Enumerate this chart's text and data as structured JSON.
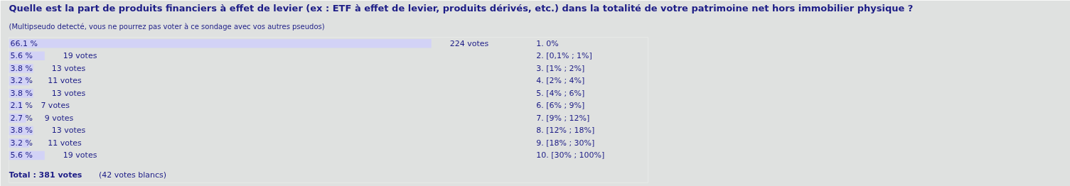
{
  "chart_data": {
    "type": "bar",
    "orientation": "horizontal",
    "title": "Quelle est la part de produits financiers à effet de levier (ex : ETF à effet de levier, produits dérivés, etc.) dans la totalité de votre patrimoine net hors immobilier physique ?",
    "subtitle": "(Multipseudo detecté, vous ne pourrez pas voter à ce sondage avec vos autres pseudos)",
    "categories": [
      "1.  0%",
      "2.  [0,1% ; 1%]",
      "3.  [1% ; 2%]",
      "4.  [2% ; 4%]",
      "5.  [4% ; 6%]",
      "6.  [6% ; 9%]",
      "7.  [9% ; 12%]",
      "8.  [12% ; 18%]",
      "9.  [18% ; 30%]",
      "10.  [30% ; 100%]"
    ],
    "values": [
      66.1,
      5.6,
      3.8,
      3.2,
      3.8,
      2.1,
      2.7,
      3.8,
      3.2,
      5.6
    ],
    "value_labels": [
      "66.1 %",
      "5.6 %",
      "3.8 %",
      "3.2 %",
      "3.8 %",
      "2.1 %",
      "2.7 %",
      "3.8 %",
      "3.2 %",
      "5.6 %"
    ],
    "color": "#d2d2f6",
    "xlim": [
      0,
      100
    ],
    "tick_labels": false,
    "grid": false,
    "annotations": [
      {
        "text": "224 votes",
        "x": 66.1,
        "y": "1.  0%"
      },
      {
        "text": "19 votes",
        "x": 5.6,
        "y": "2.  [0,1% ; 1%]"
      },
      {
        "text": "13 votes",
        "x": 3.8,
        "y": "3.  [1% ; 2%]"
      },
      {
        "text": "11 votes",
        "x": 3.2,
        "y": "4.  [2% ; 4%]"
      },
      {
        "text": "13 votes",
        "x": 3.8,
        "y": "5.  [4% ; 6%]"
      },
      {
        "text": "7 votes",
        "x": 2.1,
        "y": "6.  [6% ; 9%]"
      },
      {
        "text": "9 votes",
        "x": 2.7,
        "y": "7.  [9% ; 12%]"
      },
      {
        "text": "13 votes",
        "x": 3.8,
        "y": "8.  [12% ; 18%]"
      },
      {
        "text": "11 votes",
        "x": 3.2,
        "y": "9.  [18% ; 30%]"
      },
      {
        "text": "19 votes",
        "x": 5.6,
        "y": "10.  [30% ; 100%]"
      },
      "Total : 381 votes",
      "(42 votes blancs)"
    ]
  }
}
